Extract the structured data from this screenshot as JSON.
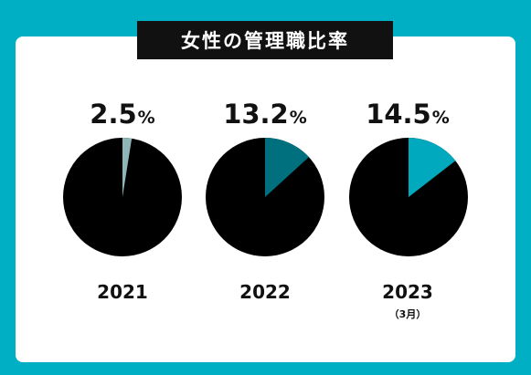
{
  "title": "女性の管理職比率",
  "colors": {
    "background": "#00AFC3",
    "card": "#FFFFFF",
    "pie_base": "#000000",
    "title_box": "#111111"
  },
  "chart_data": {
    "type": "pie",
    "title": "女性の管理職比率",
    "unit": "%",
    "items": [
      {
        "year": "2021",
        "sub": "",
        "value": 2.5,
        "value_label": "2.5",
        "color": "#8FB5B8"
      },
      {
        "year": "2022",
        "sub": "",
        "value": 13.2,
        "value_label": "13.2",
        "color": "#00707F"
      },
      {
        "year": "2023",
        "sub": "（3月）",
        "value": 14.5,
        "value_label": "14.5",
        "color": "#00A9BD"
      }
    ]
  }
}
